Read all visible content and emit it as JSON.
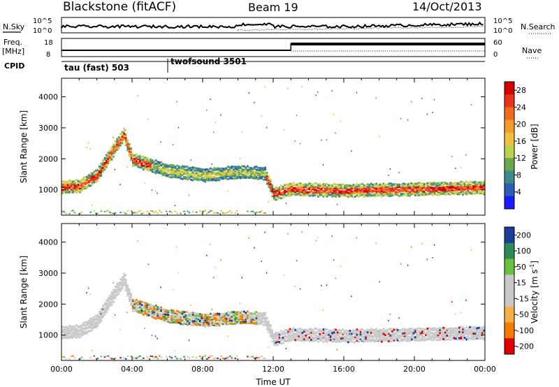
{
  "header": {
    "title": "Blackstone (fitACF)",
    "beam": "Beam 19",
    "date": "14/Oct/2013"
  },
  "status_panel": {
    "nsky_label": "N.Sky",
    "nsearch_label": "N.Search",
    "noise_ticks": [
      "10^5",
      "10^0"
    ],
    "freq_label": "Freq.",
    "freq_unit": "[MHz]",
    "freq_ticks": [
      "18",
      "8"
    ],
    "nave_label": "Nave",
    "nave_ticks": [
      "60",
      "0"
    ],
    "cpid_label": "CPID",
    "cpid_segments": [
      {
        "name": "tau (fast) 503",
        "start_hour": 0
      },
      {
        "name": "twofsound 3501",
        "start_hour": 6
      }
    ]
  },
  "chart_data": [
    {
      "type": "heatmap",
      "name": "power",
      "ylabel": "Slant Range [km]",
      "yticks": [
        1000,
        2000,
        3000,
        4000
      ],
      "ylim": [
        180,
        4600
      ],
      "x_range_hours": [
        0,
        24
      ],
      "colorbar": {
        "label": "Power [dB]",
        "ticks": [
          4,
          8,
          12,
          16,
          20,
          24,
          28
        ],
        "range": [
          0,
          30
        ]
      },
      "echo_bands": [
        {
          "description": "E-region backscatter",
          "hours": [
            0,
            11.5
          ],
          "range_km": [
            250,
            350
          ]
        },
        {
          "description": "F-region main band",
          "points": [
            [
              0,
              1100
            ],
            [
              1,
              1150
            ],
            [
              2,
              1500
            ],
            [
              3,
              2400
            ],
            [
              3.5,
              2800
            ],
            [
              4,
              2000
            ],
            [
              6,
              1650
            ],
            [
              8,
              1500
            ],
            [
              10,
              1600
            ],
            [
              11.5,
              1550
            ],
            [
              12,
              900
            ],
            [
              13,
              1050
            ],
            [
              16,
              1000
            ],
            [
              20,
              1050
            ],
            [
              24,
              1100
            ]
          ]
        }
      ]
    },
    {
      "type": "heatmap",
      "name": "velocity",
      "ylabel": "Slant Range [km]",
      "xlabel": "Time UT",
      "yticks": [
        1000,
        2000,
        3000,
        4000
      ],
      "ylim": [
        180,
        4600
      ],
      "x_range_hours": [
        0,
        24
      ],
      "xticks": [
        "00:00",
        "04:00",
        "08:00",
        "12:00",
        "16:00",
        "20:00",
        "00:00"
      ],
      "colorbar": {
        "label": "Velocity [m s-1]",
        "label_main": "Velocity [m s",
        "label_exp": "-1",
        "label_end": "]",
        "ticks": [
          200,
          100,
          50,
          15,
          -15,
          -50,
          -100,
          -200
        ]
      }
    }
  ],
  "colors": {
    "power_scale": [
      "#1a1aff",
      "#2a5fb5",
      "#3d8a8a",
      "#6aa84f",
      "#b7d44a",
      "#f0c040",
      "#f59c2a",
      "#f26a1b",
      "#e8321a",
      "#d40000"
    ],
    "velocity_scale": [
      "#e00000",
      "#f57a00",
      "#f5b04a",
      "#c9c9c9",
      "#c9c9c9",
      "#66c23a",
      "#2e8b57",
      "#1a3d99"
    ]
  }
}
